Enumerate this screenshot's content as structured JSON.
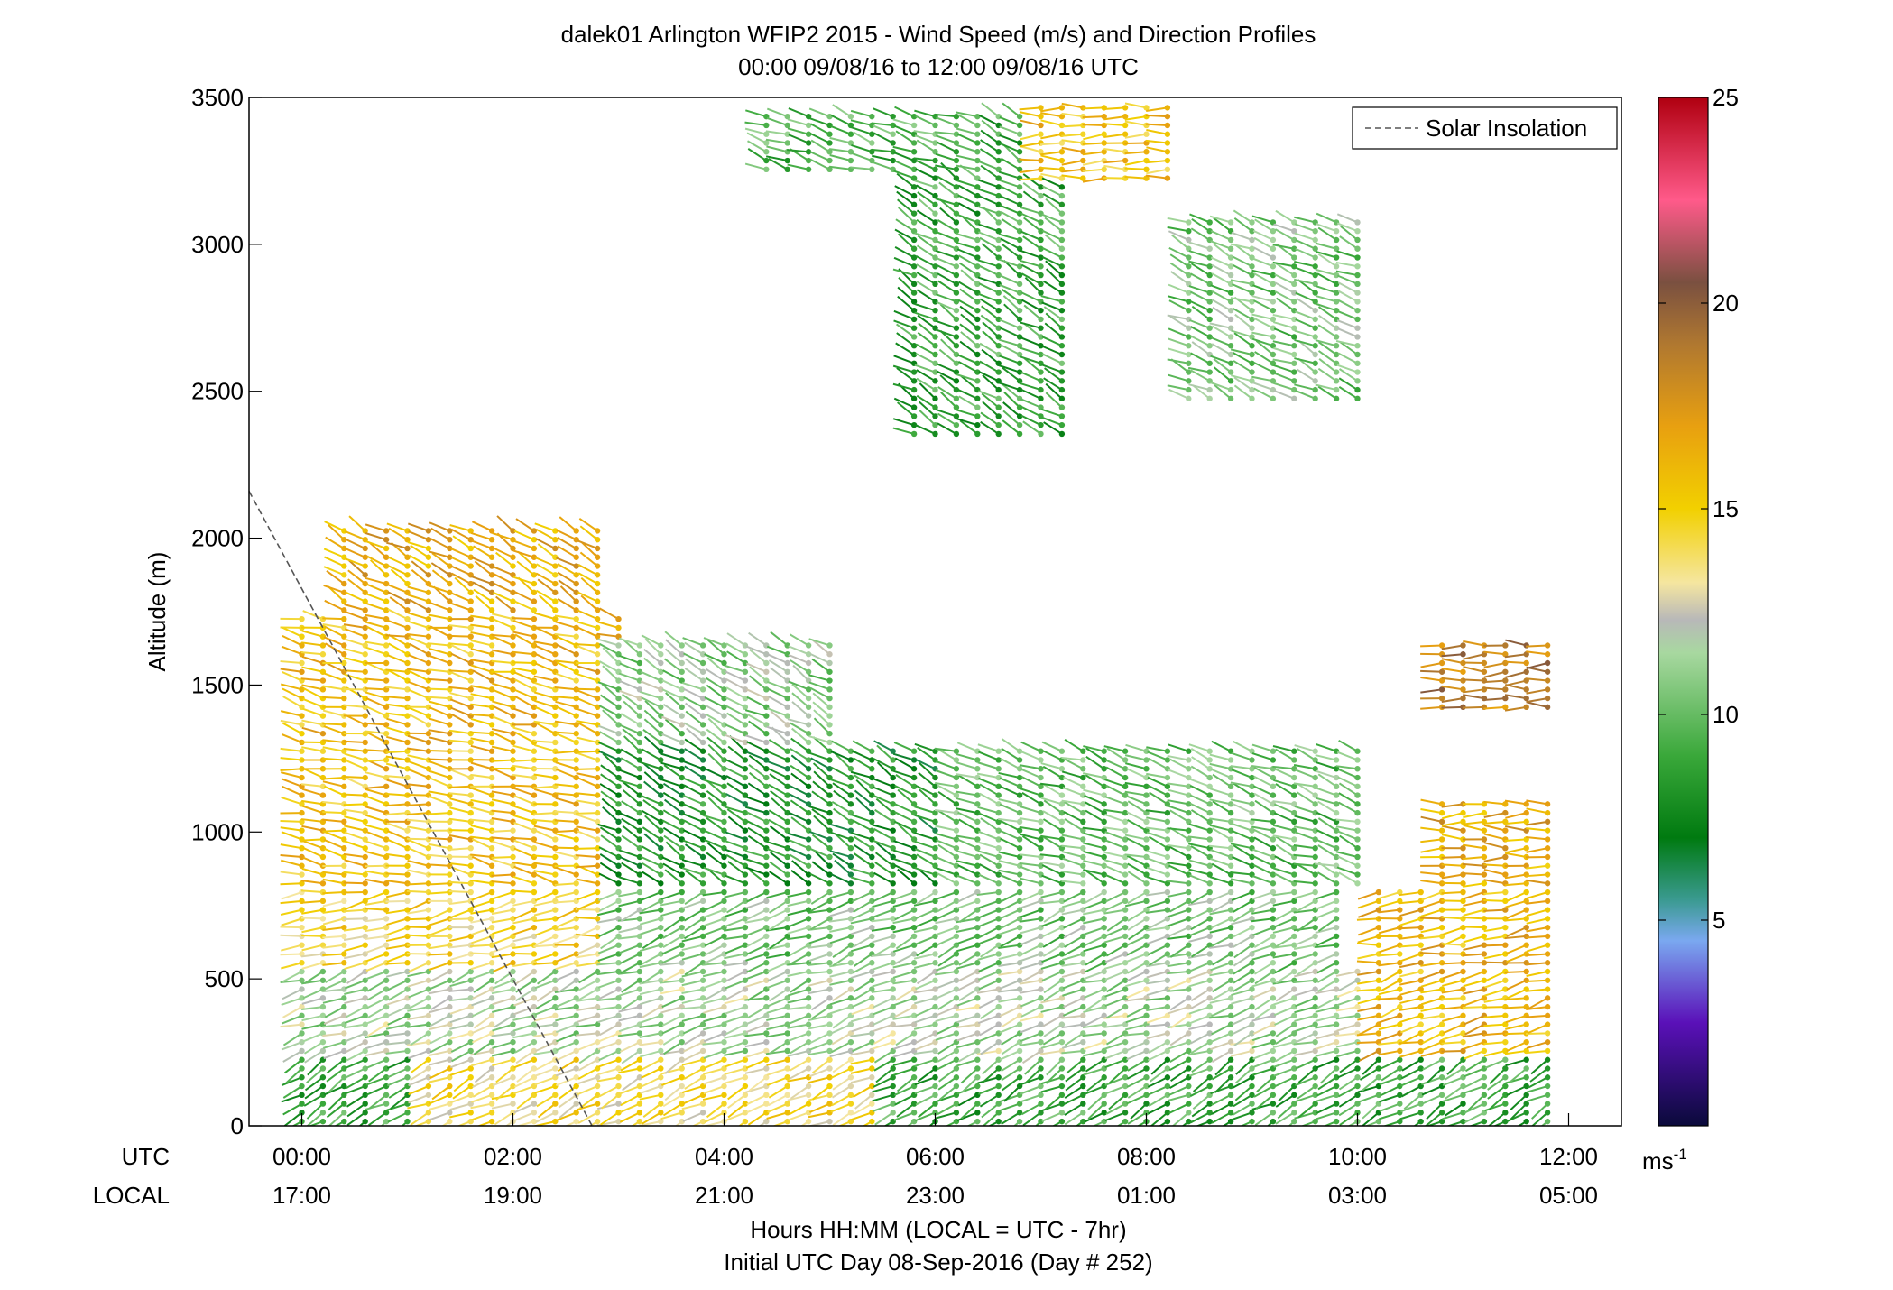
{
  "chart_data": {
    "type": "scatter",
    "title": "dalek01 Arlington WFIP2 2015 - Wind Speed (m/s) and Direction Profiles",
    "subtitle": "00:00 09/08/16 to 12:00 09/08/16  UTC",
    "ylabel": "Altitude (m)",
    "xlabel": "Hours HH:MM  (LOCAL = UTC - 7hr)",
    "xlabel2": "Initial UTC Day 08-Sep-2016 (Day # 252)",
    "x_row_labels": [
      "UTC",
      "LOCAL"
    ],
    "x_ticks_utc": [
      "00:00",
      "02:00",
      "04:00",
      "06:00",
      "08:00",
      "10:00",
      "12:00"
    ],
    "x_ticks_local": [
      "17:00",
      "19:00",
      "21:00",
      "23:00",
      "01:00",
      "03:00",
      "05:00"
    ],
    "y_ticks": [
      0,
      500,
      1000,
      1500,
      2000,
      2500,
      3000,
      3500
    ],
    "xlim_hours": [
      -0.5,
      12.5
    ],
    "ylim": [
      0,
      3500
    ],
    "legend": {
      "label": "Solar Insolation",
      "placement": "top-right"
    },
    "colorbar": {
      "ticks": [
        5,
        10,
        15,
        20,
        25
      ],
      "range": [
        0,
        25
      ],
      "unit_base": "ms",
      "unit_exp": "-1",
      "stops": [
        {
          "v": 0,
          "c": "#0a0a3a"
        },
        {
          "v": 2.5,
          "c": "#5a10b8"
        },
        {
          "v": 4.5,
          "c": "#7aa8f0"
        },
        {
          "v": 5.5,
          "c": "#3a9a90"
        },
        {
          "v": 7,
          "c": "#007a10"
        },
        {
          "v": 9,
          "c": "#3aa83a"
        },
        {
          "v": 11.5,
          "c": "#a8d8a0"
        },
        {
          "v": 12.3,
          "c": "#b8b8b8"
        },
        {
          "v": 13.2,
          "c": "#f5e6a0"
        },
        {
          "v": 15,
          "c": "#f2d000"
        },
        {
          "v": 17,
          "c": "#e8a010"
        },
        {
          "v": 19,
          "c": "#b07830"
        },
        {
          "v": 20.5,
          "c": "#7a5040"
        },
        {
          "v": 22.5,
          "c": "#ff5a8a"
        },
        {
          "v": 25,
          "c": "#b00010"
        }
      ]
    },
    "solar_insolation_line": {
      "x_hours": [
        -0.5,
        2.75
      ],
      "y": [
        2160,
        0
      ]
    },
    "profile_times_hours": [
      0.0,
      0.2,
      0.4,
      0.6,
      0.8,
      1.0,
      1.2,
      1.4,
      1.6,
      1.8,
      2.0,
      2.2,
      2.4,
      2.6,
      2.8,
      3.0,
      3.2,
      3.4,
      3.6,
      3.8,
      4.0,
      4.2,
      4.4,
      4.6,
      4.8,
      5.0,
      5.2,
      5.4,
      5.6,
      5.8,
      6.0,
      6.2,
      6.4,
      6.6,
      6.8,
      7.0,
      7.2,
      7.4,
      7.6,
      7.8,
      8.0,
      8.2,
      8.4,
      8.6,
      8.8,
      9.0,
      9.2,
      9.4,
      9.6,
      9.8,
      10.0,
      10.2,
      10.4,
      10.6,
      10.8,
      11.0,
      11.2,
      11.4,
      11.6,
      11.8
    ],
    "speed_layers": [
      {
        "z0": 0,
        "z1": 250,
        "t0": 0,
        "t1": 12,
        "speed": 9.0,
        "dir": 240
      },
      {
        "z0": 0,
        "z1": 250,
        "t0": 1.2,
        "t1": 5.4,
        "speed": 14.2,
        "dir": 245
      },
      {
        "z0": 250,
        "z1": 550,
        "t0": 0,
        "t1": 12,
        "speed": 11.5,
        "dir": 250
      },
      {
        "z0": 250,
        "z1": 550,
        "t0": 10.2,
        "t1": 12,
        "speed": 16.0,
        "dir": 255
      },
      {
        "z0": 550,
        "z1": 800,
        "t0": 0,
        "t1": 3.0,
        "speed": 14.5,
        "dir": 260
      },
      {
        "z0": 550,
        "z1": 800,
        "t0": 3.0,
        "t1": 9.8,
        "speed": 10.5,
        "dir": 250
      },
      {
        "z0": 550,
        "z1": 800,
        "t0": 10.2,
        "t1": 12,
        "speed": 16.0,
        "dir": 260
      },
      {
        "z0": 800,
        "z1": 1300,
        "t0": 0,
        "t1": 3.0,
        "speed": 15.5,
        "dir": 280
      },
      {
        "z0": 800,
        "z1": 1300,
        "t0": 3.0,
        "t1": 6.2,
        "speed": 8.0,
        "dir": 300
      },
      {
        "z0": 800,
        "z1": 1300,
        "t0": 6.2,
        "t1": 10.0,
        "speed": 10.0,
        "dir": 290
      },
      {
        "z0": 800,
        "z1": 1100,
        "t0": 10.8,
        "t1": 12,
        "speed": 16.5,
        "dir": 270
      },
      {
        "z0": 1300,
        "z1": 1750,
        "t0": 0,
        "t1": 3.0,
        "speed": 15.8,
        "dir": 285
      },
      {
        "z0": 1300,
        "z1": 1650,
        "t0": 3.0,
        "t1": 5.0,
        "speed": 11.0,
        "dir": 300
      },
      {
        "z0": 1750,
        "z1": 2050,
        "t0": 0.4,
        "t1": 2.8,
        "speed": 16.5,
        "dir": 300
      },
      {
        "z0": 2350,
        "z1": 3450,
        "t0": 5.8,
        "t1": 7.2,
        "speed": 9.0,
        "dir": 300
      },
      {
        "z0": 2450,
        "z1": 3100,
        "t0": 8.4,
        "t1": 10.0,
        "speed": 10.5,
        "dir": 295
      },
      {
        "z0": 3200,
        "z1": 3480,
        "t0": 7.0,
        "t1": 8.2,
        "speed": 15.5,
        "dir": 270
      },
      {
        "z0": 3250,
        "z1": 3450,
        "t0": 4.4,
        "t1": 6.4,
        "speed": 9.5,
        "dir": 290
      },
      {
        "z0": 1400,
        "z1": 1650,
        "t0": 10.8,
        "t1": 12,
        "speed": 18.5,
        "dir": 270
      }
    ]
  }
}
